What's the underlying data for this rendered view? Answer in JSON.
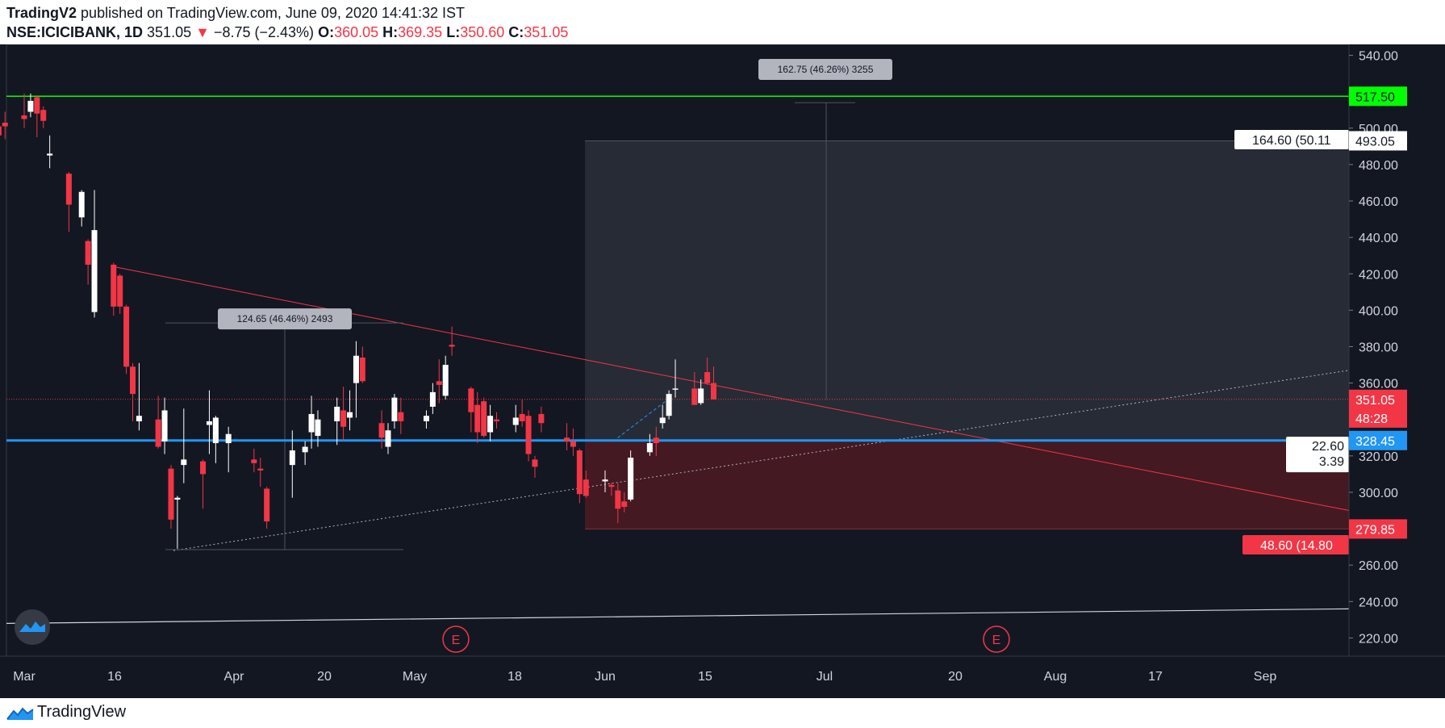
{
  "header": {
    "author": "TradingV2",
    "published": "published on TradingView.com, June 09, 2020 14:41:32 IST",
    "symbol": "NSE:ICICIBANK, 1D",
    "last": "351.05",
    "change_arrow": "▼",
    "change": "−8.75 (−2.43%)",
    "o_label": "O:",
    "o_value": "360.05",
    "h_label": "H:",
    "h_value": "369.35",
    "l_label": "L:",
    "l_value": "350.60",
    "c_label": "C:",
    "c_value": "351.05"
  },
  "footer": {
    "brand": "TradingView",
    "logo_icon": "tradingview-logo-icon"
  },
  "colors": {
    "background": "#131722",
    "up": "#ffffff",
    "down": "#f23645",
    "grid": "#2a2e39",
    "green_line": "#00ff00",
    "blue_line": "#2196f3",
    "target_zone": "#2a2e39",
    "stop_zone": "#4a1a22"
  },
  "chart_data": {
    "type": "candlestick",
    "title": "",
    "xlabel": "",
    "ylabel": "",
    "ylim": [
      210,
      546
    ],
    "x_ticks": [
      "Mar",
      "16",
      "Apr",
      "20",
      "May",
      "18",
      "Jun",
      "15",
      "Jul",
      "20",
      "Aug",
      "17",
      "Sep"
    ],
    "y_ticks": [
      "540.00",
      "520.00",
      "500.00",
      "480.00",
      "460.00",
      "440.00",
      "420.00",
      "400.00",
      "380.00",
      "360.00",
      "340.00",
      "320.00",
      "300.00",
      "280.00",
      "260.00",
      "240.00",
      "220.00"
    ],
    "candles": [
      {
        "date": "2020-02-25",
        "o": 518,
        "h": 521,
        "l": 512,
        "c": 515
      },
      {
        "date": "2020-02-26",
        "o": 512,
        "h": 514,
        "l": 508,
        "c": 510
      },
      {
        "date": "2020-02-27",
        "o": 501,
        "h": 503,
        "l": 491,
        "c": 496
      },
      {
        "date": "2020-02-28",
        "o": 503,
        "h": 509,
        "l": 494,
        "c": 501
      },
      {
        "date": "2020-03-02",
        "o": 507,
        "h": 519,
        "l": 500,
        "c": 505
      },
      {
        "date": "2020-03-03",
        "o": 509,
        "h": 519,
        "l": 506,
        "c": 515
      },
      {
        "date": "2020-03-04",
        "o": 517,
        "h": 518,
        "l": 495,
        "c": 508
      },
      {
        "date": "2020-03-05",
        "o": 510,
        "h": 512,
        "l": 500,
        "c": 504
      },
      {
        "date": "2020-03-06",
        "o": 485,
        "h": 496,
        "l": 478,
        "c": 486
      },
      {
        "date": "2020-03-09",
        "o": 475,
        "h": 476,
        "l": 443,
        "c": 458
      },
      {
        "date": "2020-03-11",
        "o": 451,
        "h": 466,
        "l": 446,
        "c": 465
      },
      {
        "date": "2020-03-12",
        "o": 438,
        "h": 439,
        "l": 414,
        "c": 425
      },
      {
        "date": "2020-03-13",
        "o": 399,
        "h": 466,
        "l": 396,
        "c": 444
      },
      {
        "date": "2020-03-16",
        "o": 425,
        "h": 426,
        "l": 397,
        "c": 402
      },
      {
        "date": "2020-03-17",
        "o": 419,
        "h": 420,
        "l": 398,
        "c": 402
      },
      {
        "date": "2020-03-18",
        "o": 402,
        "h": 403,
        "l": 365,
        "c": 369
      },
      {
        "date": "2020-03-19",
        "o": 369,
        "h": 371,
        "l": 339,
        "c": 354
      },
      {
        "date": "2020-03-20",
        "o": 339,
        "h": 371,
        "l": 334,
        "c": 342
      },
      {
        "date": "2020-03-23",
        "o": 340,
        "h": 353,
        "l": 324,
        "c": 325
      },
      {
        "date": "2020-03-24",
        "o": 328,
        "h": 352,
        "l": 321,
        "c": 345
      },
      {
        "date": "2020-03-25",
        "o": 313,
        "h": 315,
        "l": 280,
        "c": 285
      },
      {
        "date": "2020-03-26",
        "o": 296,
        "h": 298,
        "l": 269,
        "c": 297
      },
      {
        "date": "2020-03-27",
        "o": 315,
        "h": 346,
        "l": 305,
        "c": 318
      },
      {
        "date": "2020-03-30",
        "o": 317,
        "h": 318,
        "l": 291,
        "c": 310
      },
      {
        "date": "2020-03-31",
        "o": 337,
        "h": 356,
        "l": 321,
        "c": 339
      },
      {
        "date": "2020-04-01",
        "o": 327,
        "h": 342,
        "l": 316,
        "c": 341
      },
      {
        "date": "2020-04-03",
        "o": 327,
        "h": 336,
        "l": 311,
        "c": 332
      },
      {
        "date": "2020-04-07",
        "o": 318,
        "h": 324,
        "l": 311,
        "c": 316
      },
      {
        "date": "2020-04-08",
        "o": 313,
        "h": 319,
        "l": 303,
        "c": 312
      },
      {
        "date": "2020-04-09",
        "o": 302,
        "h": 303,
        "l": 280,
        "c": 284
      },
      {
        "date": "2020-04-13",
        "o": 315,
        "h": 334,
        "l": 297,
        "c": 323
      },
      {
        "date": "2020-04-15",
        "o": 322,
        "h": 328,
        "l": 315,
        "c": 325
      },
      {
        "date": "2020-04-16",
        "o": 333,
        "h": 353,
        "l": 324,
        "c": 343
      },
      {
        "date": "2020-04-17",
        "o": 331,
        "h": 345,
        "l": 325,
        "c": 340
      },
      {
        "date": "2020-04-20",
        "o": 339,
        "h": 352,
        "l": 326,
        "c": 347
      },
      {
        "date": "2020-04-21",
        "o": 345,
        "h": 358,
        "l": 328,
        "c": 336
      },
      {
        "date": "2020-04-22",
        "o": 341,
        "h": 356,
        "l": 334,
        "c": 344
      },
      {
        "date": "2020-04-23",
        "o": 360,
        "h": 383,
        "l": 341,
        "c": 375
      },
      {
        "date": "2020-04-24",
        "o": 374,
        "h": 380,
        "l": 360,
        "c": 361
      },
      {
        "date": "2020-04-27",
        "o": 338,
        "h": 345,
        "l": 324,
        "c": 330
      },
      {
        "date": "2020-04-28",
        "o": 325,
        "h": 338,
        "l": 321,
        "c": 334
      },
      {
        "date": "2020-04-29",
        "o": 339,
        "h": 354,
        "l": 335,
        "c": 352
      },
      {
        "date": "2020-04-30",
        "o": 344,
        "h": 352,
        "l": 332,
        "c": 339
      },
      {
        "date": "2020-05-04",
        "o": 339,
        "h": 345,
        "l": 335,
        "c": 342
      },
      {
        "date": "2020-05-05",
        "o": 347,
        "h": 360,
        "l": 343,
        "c": 355
      },
      {
        "date": "2020-05-06",
        "o": 361,
        "h": 373,
        "l": 349,
        "c": 359
      },
      {
        "date": "2020-05-07",
        "o": 353,
        "h": 375,
        "l": 351,
        "c": 370
      },
      {
        "date": "2020-05-08",
        "o": 381,
        "h": 391,
        "l": 375,
        "c": 380
      },
      {
        "date": "2020-05-11",
        "o": 357,
        "h": 358,
        "l": 333,
        "c": 344
      },
      {
        "date": "2020-05-12",
        "o": 348,
        "h": 355,
        "l": 327,
        "c": 333
      },
      {
        "date": "2020-05-13",
        "o": 350,
        "h": 352,
        "l": 330,
        "c": 331
      },
      {
        "date": "2020-05-14",
        "o": 333,
        "h": 348,
        "l": 328,
        "c": 342
      },
      {
        "date": "2020-05-15",
        "o": 340,
        "h": 344,
        "l": 335,
        "c": 339
      },
      {
        "date": "2020-05-18",
        "o": 337,
        "h": 348,
        "l": 333,
        "c": 341
      },
      {
        "date": "2020-05-19",
        "o": 343,
        "h": 351,
        "l": 336,
        "c": 339
      },
      {
        "date": "2020-05-20",
        "o": 342,
        "h": 345,
        "l": 317,
        "c": 321
      },
      {
        "date": "2020-05-21",
        "o": 318,
        "h": 320,
        "l": 308,
        "c": 314
      },
      {
        "date": "2020-05-22",
        "o": 343,
        "h": 347,
        "l": 333,
        "c": 338
      },
      {
        "date": "2020-05-26",
        "o": 330,
        "h": 338,
        "l": 323,
        "c": 328
      },
      {
        "date": "2020-05-27",
        "o": 328,
        "h": 335,
        "l": 320,
        "c": 325
      },
      {
        "date": "2020-05-28",
        "o": 323,
        "h": 324,
        "l": 294,
        "c": 299
      },
      {
        "date": "2020-05-29",
        "o": 307,
        "h": 312,
        "l": 297,
        "c": 298
      },
      {
        "date": "2020-06-01",
        "o": 306,
        "h": 312,
        "l": 300,
        "c": 307
      },
      {
        "date": "2020-06-02",
        "o": 304,
        "h": 305,
        "l": 298,
        "c": 303
      },
      {
        "date": "2020-06-03",
        "o": 301,
        "h": 305,
        "l": 283,
        "c": 291
      },
      {
        "date": "2020-06-04",
        "o": 295,
        "h": 300,
        "l": 289,
        "c": 292
      },
      {
        "date": "2020-06-05",
        "o": 296,
        "h": 323,
        "l": 295,
        "c": 319
      },
      {
        "date": "2020-06-08",
        "o": 322,
        "h": 332,
        "l": 320,
        "c": 327
      },
      {
        "date": "2020-06-09",
        "o": 330,
        "h": 336,
        "l": 320,
        "c": 327
      },
      {
        "date": "2020-06-10",
        "o": 338,
        "h": 348,
        "l": 335,
        "c": 341
      },
      {
        "date": "2020-06-11",
        "o": 342,
        "h": 356,
        "l": 340,
        "c": 354
      },
      {
        "date": "2020-06-12",
        "o": 357,
        "h": 373,
        "l": 352,
        "c": 357
      },
      {
        "date": "2020-06-15",
        "o": 357,
        "h": 366,
        "l": 348,
        "c": 348
      },
      {
        "date": "2020-06-16",
        "o": 349,
        "h": 362,
        "l": 348,
        "c": 357
      },
      {
        "date": "2020-06-17",
        "o": 366,
        "h": 374,
        "l": 359,
        "c": 360
      },
      {
        "date": "2020-06-18",
        "o": 360,
        "h": 369,
        "l": 351,
        "c": 351
      }
    ],
    "horizontal_lines": [
      {
        "price": 517.5,
        "label": "517.50",
        "color": "#00ff00"
      },
      {
        "price": 328.45,
        "label": "328.45",
        "color": "#2196f3"
      }
    ],
    "price_labels": [
      {
        "price": 493.05,
        "label": "493.05",
        "style": "white"
      },
      {
        "price": 351.05,
        "label": "351.05",
        "style": "red"
      },
      {
        "price": 340.8,
        "label": "48:28",
        "style": "red"
      },
      {
        "price": 279.85,
        "label": "279.85",
        "style": "red"
      }
    ],
    "position_labels": [
      {
        "text": "164.60 (50.11",
        "style": "white",
        "price": 498
      },
      {
        "text": "22.60",
        "text2": "3.39",
        "style": "white",
        "price": 323
      },
      {
        "text": "48.60 (14.80",
        "style": "red",
        "price": 272
      }
    ],
    "measure_labels": [
      {
        "text": "124.65 (46.46%) 2493"
      },
      {
        "text": "162.75 (46.26%) 3255"
      }
    ],
    "events": [
      "E",
      "E"
    ]
  }
}
